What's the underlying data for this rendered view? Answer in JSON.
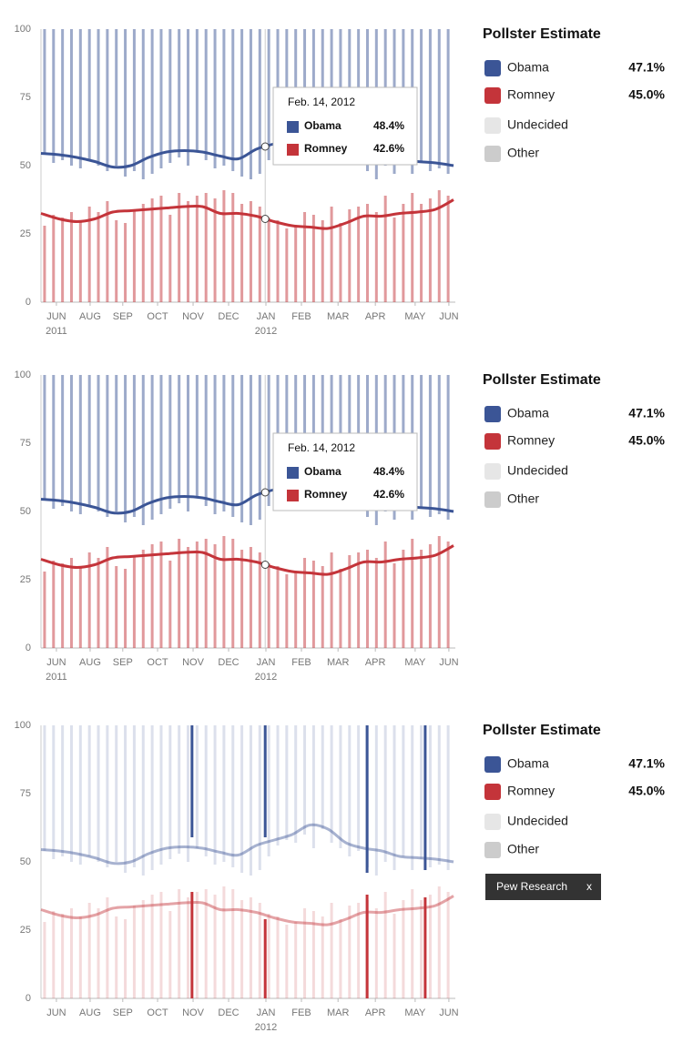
{
  "chart_data": [
    {
      "type": "bar",
      "ylim": [
        0,
        100
      ],
      "yticks": [
        0,
        25,
        50,
        75,
        100
      ],
      "xlim": [
        0,
        11.55
      ],
      "xticks": [
        {
          "value": 0.43,
          "label": "JUN"
        },
        {
          "value": 1.37,
          "label": "AUG"
        },
        {
          "value": 2.28,
          "label": "SEP"
        },
        {
          "value": 3.25,
          "label": "OCT"
        },
        {
          "value": 4.24,
          "label": "NOV"
        },
        {
          "value": 5.23,
          "label": "DEC"
        },
        {
          "value": 6.27,
          "label": "JAN"
        },
        {
          "value": 7.26,
          "label": "FEB"
        },
        {
          "value": 8.28,
          "label": "MAR"
        },
        {
          "value": 9.32,
          "label": "APR"
        },
        {
          "value": 10.43,
          "label": "MAY"
        },
        {
          "value": 11.37,
          "label": "JUN"
        }
      ],
      "year_labels": [
        {
          "value": 0.43,
          "label": "2011"
        },
        {
          "value": 6.27,
          "label": "2012"
        }
      ],
      "x": [
        0.1,
        0.35,
        0.6,
        0.85,
        1.1,
        1.35,
        1.6,
        1.85,
        2.1,
        2.35,
        2.6,
        2.85,
        3.1,
        3.35,
        3.6,
        3.85,
        4.1,
        4.35,
        4.6,
        4.85,
        5.1,
        5.35,
        5.6,
        5.85,
        6.1,
        6.35,
        6.6,
        6.85,
        7.1,
        7.35,
        7.6,
        7.85,
        8.1,
        8.35,
        8.6,
        8.85,
        9.1,
        9.35,
        9.6,
        9.85,
        10.1,
        10.35,
        10.6,
        10.85,
        11.1,
        11.35
      ],
      "trend_x": [
        0,
        0.5,
        1,
        1.5,
        2,
        2.5,
        3,
        3.5,
        4,
        4.5,
        5,
        5.5,
        6,
        6.5,
        7,
        7.5,
        8,
        8.5,
        9,
        9.5,
        10,
        10.5,
        11,
        11.5
      ],
      "legend_title": "Pollster Estimate",
      "series": [
        {
          "name": "Obama",
          "color": "#3b5596",
          "estimate": 47.1,
          "estimate_label": "47.1%",
          "values": [
            54,
            51,
            52,
            50,
            49,
            52,
            50,
            48,
            50,
            46,
            48,
            45,
            47,
            49,
            51,
            53,
            50,
            55,
            52,
            49,
            50,
            48,
            46,
            45,
            47,
            52,
            56,
            58,
            57,
            60,
            55,
            62,
            57,
            55,
            52,
            54,
            48,
            45,
            50,
            47,
            52,
            47,
            51,
            48,
            49,
            47
          ],
          "trend": [
            54.5,
            54,
            53,
            51.5,
            49.5,
            50,
            53,
            55,
            55.5,
            55,
            53.5,
            52.5,
            56,
            58,
            60,
            63.5,
            62,
            57,
            55,
            54,
            52,
            51.5,
            51,
            50
          ]
        },
        {
          "name": "Romney",
          "color": "#c4343a",
          "estimate": 45.0,
          "estimate_label": "45.0%",
          "values": [
            28,
            32,
            31,
            33,
            30,
            35,
            33,
            37,
            30,
            29,
            34,
            36,
            38,
            39,
            32,
            40,
            37,
            39,
            40,
            38,
            41,
            40,
            36,
            37,
            35,
            31,
            30,
            27,
            28,
            33,
            32,
            30,
            35,
            29,
            34,
            35,
            36,
            33,
            39,
            31,
            36,
            40,
            36,
            38,
            41,
            39
          ],
          "trend": [
            32.5,
            30.5,
            29.5,
            30.5,
            33,
            33.5,
            34,
            34.5,
            35,
            35,
            32.5,
            32.5,
            31.5,
            29.5,
            28,
            27.5,
            27,
            29,
            31.5,
            31.5,
            32.5,
            33,
            34,
            37.5
          ]
        },
        {
          "name": "Undecided",
          "color": "#e6e6e6"
        },
        {
          "name": "Other",
          "color": "#cccccc"
        }
      ],
      "tooltip": {
        "x": 6.25,
        "date": "Feb. 14, 2012",
        "items": [
          {
            "name": "Obama",
            "color": "#3b5596",
            "value": 48.4,
            "value_label": "48.4%"
          },
          {
            "name": "Romney",
            "color": "#c4343a",
            "value": 42.6,
            "value_label": "42.6%"
          }
        ]
      }
    },
    {
      "type": "bar",
      "ylim": [
        0,
        100
      ],
      "yticks": [
        0,
        25,
        50,
        75,
        100
      ],
      "xlim": [
        0,
        11.55
      ],
      "xticks": [
        {
          "value": 0.43,
          "label": "JUN"
        },
        {
          "value": 1.37,
          "label": "AUG"
        },
        {
          "value": 2.28,
          "label": "SEP"
        },
        {
          "value": 3.25,
          "label": "OCT"
        },
        {
          "value": 4.24,
          "label": "NOV"
        },
        {
          "value": 5.23,
          "label": "DEC"
        },
        {
          "value": 6.27,
          "label": "JAN"
        },
        {
          "value": 7.26,
          "label": "FEB"
        },
        {
          "value": 8.28,
          "label": "MAR"
        },
        {
          "value": 9.32,
          "label": "APR"
        },
        {
          "value": 10.43,
          "label": "MAY"
        },
        {
          "value": 11.37,
          "label": "JUN"
        }
      ],
      "year_labels": [
        {
          "value": 0.43,
          "label": "2011"
        },
        {
          "value": 6.27,
          "label": "2012"
        }
      ],
      "x": [
        0.1,
        0.35,
        0.6,
        0.85,
        1.1,
        1.35,
        1.6,
        1.85,
        2.1,
        2.35,
        2.6,
        2.85,
        3.1,
        3.35,
        3.6,
        3.85,
        4.1,
        4.35,
        4.6,
        4.85,
        5.1,
        5.35,
        5.6,
        5.85,
        6.1,
        6.35,
        6.6,
        6.85,
        7.1,
        7.35,
        7.6,
        7.85,
        8.1,
        8.35,
        8.6,
        8.85,
        9.1,
        9.35,
        9.6,
        9.85,
        10.1,
        10.35,
        10.6,
        10.85,
        11.1,
        11.35
      ],
      "trend_x": [
        0,
        0.5,
        1,
        1.5,
        2,
        2.5,
        3,
        3.5,
        4,
        4.5,
        5,
        5.5,
        6,
        6.5,
        7,
        7.5,
        8,
        8.5,
        9,
        9.5,
        10,
        10.5,
        11,
        11.5
      ],
      "legend_title": "Pollster Estimate",
      "series": [
        {
          "name": "Obama",
          "color": "#3b5596",
          "estimate": 47.1,
          "estimate_label": "47.1%",
          "values": [
            54,
            51,
            52,
            50,
            49,
            52,
            50,
            48,
            50,
            46,
            48,
            45,
            47,
            49,
            51,
            53,
            50,
            55,
            52,
            49,
            50,
            48,
            46,
            45,
            47,
            52,
            56,
            58,
            57,
            60,
            55,
            62,
            57,
            55,
            52,
            54,
            48,
            45,
            50,
            47,
            52,
            47,
            51,
            48,
            49,
            47
          ],
          "trend": [
            54.5,
            54,
            53,
            51.5,
            49.5,
            50,
            53,
            55,
            55.5,
            55,
            53.5,
            52.5,
            56,
            58,
            60,
            63.5,
            62,
            57,
            55,
            54,
            52,
            51.5,
            51,
            50
          ]
        },
        {
          "name": "Romney",
          "color": "#c4343a",
          "estimate": 45.0,
          "estimate_label": "45.0%",
          "values": [
            28,
            32,
            31,
            33,
            30,
            35,
            33,
            37,
            30,
            29,
            34,
            36,
            38,
            39,
            32,
            40,
            37,
            39,
            40,
            38,
            41,
            40,
            36,
            37,
            35,
            31,
            30,
            27,
            28,
            33,
            32,
            30,
            35,
            29,
            34,
            35,
            36,
            33,
            39,
            31,
            36,
            40,
            36,
            38,
            41,
            39
          ],
          "trend": [
            32.5,
            30.5,
            29.5,
            30.5,
            33,
            33.5,
            34,
            34.5,
            35,
            35,
            32.5,
            32.5,
            31.5,
            29.5,
            28,
            27.5,
            27,
            29,
            31.5,
            31.5,
            32.5,
            33,
            34,
            37.5
          ]
        },
        {
          "name": "Undecided",
          "color": "#e6e6e6"
        },
        {
          "name": "Other",
          "color": "#cccccc"
        }
      ],
      "tooltip": {
        "x": 6.25,
        "date": "Feb. 14, 2012",
        "items": [
          {
            "name": "Obama",
            "color": "#3b5596",
            "value": 48.4,
            "value_label": "48.4%"
          },
          {
            "name": "Romney",
            "color": "#c4343a",
            "value": 42.6,
            "value_label": "42.6%"
          }
        ]
      }
    },
    {
      "type": "bar",
      "ylim": [
        0,
        100
      ],
      "yticks": [
        0,
        25,
        50,
        75,
        100
      ],
      "xlim": [
        0,
        11.55
      ],
      "xticks": [
        {
          "value": 0.43,
          "label": "JUN"
        },
        {
          "value": 1.37,
          "label": "AUG"
        },
        {
          "value": 2.28,
          "label": "SEP"
        },
        {
          "value": 3.25,
          "label": "OCT"
        },
        {
          "value": 4.24,
          "label": "NOV"
        },
        {
          "value": 5.23,
          "label": "DEC"
        },
        {
          "value": 6.27,
          "label": "JAN"
        },
        {
          "value": 7.26,
          "label": "FEB"
        },
        {
          "value": 8.28,
          "label": "MAR"
        },
        {
          "value": 9.32,
          "label": "APR"
        },
        {
          "value": 10.43,
          "label": "MAY"
        },
        {
          "value": 11.37,
          "label": "JUN"
        }
      ],
      "year_labels": [
        {
          "value": 6.27,
          "label": "2012"
        }
      ],
      "x": [
        0.1,
        0.35,
        0.6,
        0.85,
        1.1,
        1.35,
        1.6,
        1.85,
        2.1,
        2.35,
        2.6,
        2.85,
        3.1,
        3.35,
        3.6,
        3.85,
        4.1,
        4.35,
        4.6,
        4.85,
        5.1,
        5.35,
        5.6,
        5.85,
        6.1,
        6.35,
        6.6,
        6.85,
        7.1,
        7.35,
        7.6,
        7.85,
        8.1,
        8.35,
        8.6,
        8.85,
        9.1,
        9.35,
        9.6,
        9.85,
        10.1,
        10.35,
        10.6,
        10.85,
        11.1,
        11.35
      ],
      "trend_x": [
        0,
        0.5,
        1,
        1.5,
        2,
        2.5,
        3,
        3.5,
        4,
        4.5,
        5,
        5.5,
        6,
        6.5,
        7,
        7.5,
        8,
        8.5,
        9,
        9.5,
        10,
        10.5,
        11,
        11.5
      ],
      "legend_title": "Pollster Estimate",
      "series": [
        {
          "name": "Obama",
          "color": "#3b5596",
          "estimate": 47.1,
          "estimate_label": "47.1%",
          "values": [
            54,
            51,
            52,
            50,
            49,
            52,
            50,
            48,
            50,
            46,
            48,
            45,
            47,
            49,
            51,
            53,
            50,
            55,
            52,
            49,
            50,
            48,
            46,
            45,
            47,
            52,
            56,
            58,
            57,
            60,
            55,
            62,
            57,
            55,
            52,
            54,
            48,
            45,
            50,
            47,
            52,
            47,
            51,
            48,
            49,
            47
          ],
          "trend": [
            54.5,
            54,
            53,
            51.5,
            49.5,
            50,
            53,
            55,
            55.5,
            55,
            53.5,
            52.5,
            56,
            58,
            60,
            63.5,
            62,
            57,
            55,
            54,
            52,
            51.5,
            51,
            50
          ]
        },
        {
          "name": "Romney",
          "color": "#c4343a",
          "estimate": 45.0,
          "estimate_label": "45.0%",
          "values": [
            28,
            32,
            31,
            33,
            30,
            35,
            33,
            37,
            30,
            29,
            34,
            36,
            38,
            39,
            32,
            40,
            37,
            39,
            40,
            38,
            41,
            40,
            36,
            37,
            35,
            31,
            30,
            27,
            28,
            33,
            32,
            30,
            35,
            29,
            34,
            35,
            36,
            33,
            39,
            31,
            36,
            40,
            36,
            38,
            41,
            39
          ],
          "trend": [
            32.5,
            30.5,
            29.5,
            30.5,
            33,
            33.5,
            34,
            34.5,
            35,
            35,
            32.5,
            32.5,
            31.5,
            29.5,
            28,
            27.5,
            27,
            29,
            31.5,
            31.5,
            32.5,
            33,
            34,
            37.5
          ]
        },
        {
          "name": "Undecided",
          "color": "#e6e6e6"
        },
        {
          "name": "Other",
          "color": "#cccccc"
        }
      ],
      "highlight": {
        "name": "Pew Research",
        "close": "x",
        "x": [
          4.21,
          6.25,
          9.09,
          10.71
        ],
        "series": [
          {
            "values": [
              59,
              59,
              46,
              47
            ]
          },
          {
            "values": [
              39,
              29,
              38,
              37
            ]
          }
        ]
      }
    }
  ]
}
